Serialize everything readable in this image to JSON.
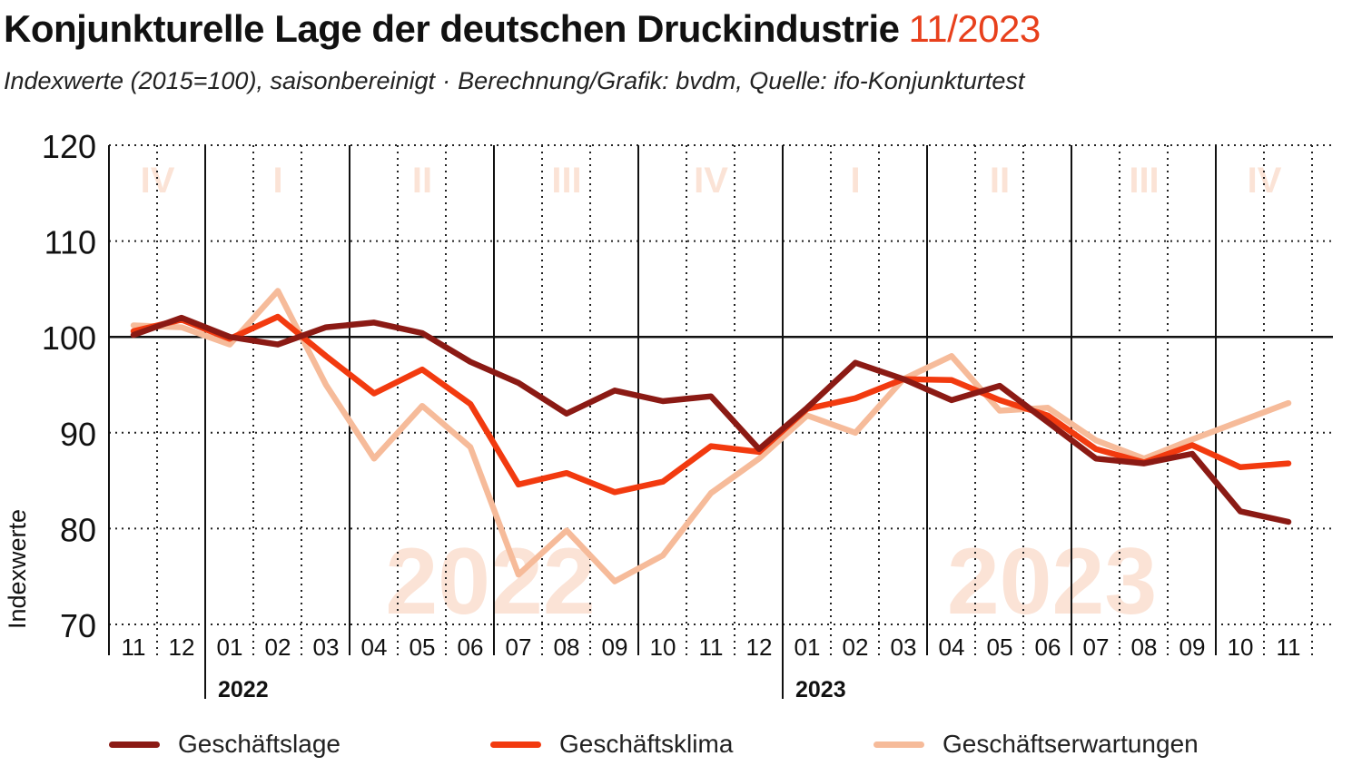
{
  "header": {
    "title": "Konjunkturelle Lage der deutschen Druckindustrie",
    "title_date": "11/2023",
    "subtitle_left": "Indexwerte (2015=100), saisonbereinigt",
    "subtitle_sep": "·",
    "subtitle_right": "Berechnung/Grafik: bvdm, Quelle: ifo-Konjunkturtest"
  },
  "colors": {
    "accent": "#e8401c",
    "geschaeftslage": "#8b1a14",
    "geschaeftsklima": "#f23a0f",
    "geschaeftserwartungen": "#f6bb9a",
    "watermark": "#fbe3d6",
    "grid": "#222222"
  },
  "chart_data": {
    "type": "line",
    "ylabel": "Indexwerte",
    "ylim": [
      70,
      120
    ],
    "yticks": [
      70,
      80,
      90,
      100,
      110,
      120
    ],
    "baseline": 100,
    "grid": "dotted",
    "legend_position": "bottom",
    "categories": [
      "11",
      "12",
      "01",
      "02",
      "03",
      "04",
      "05",
      "06",
      "07",
      "08",
      "09",
      "10",
      "11",
      "12",
      "01",
      "02",
      "03",
      "04",
      "05",
      "06",
      "07",
      "08",
      "09",
      "10",
      "11"
    ],
    "years": [
      {
        "label": "2022",
        "start_index": 2
      },
      {
        "label": "2023",
        "start_index": 14
      }
    ],
    "quarters": [
      {
        "label": "IV",
        "start_index": 0,
        "end_index": 1
      },
      {
        "label": "I",
        "start_index": 2,
        "end_index": 4
      },
      {
        "label": "II",
        "start_index": 5,
        "end_index": 7
      },
      {
        "label": "III",
        "start_index": 8,
        "end_index": 10
      },
      {
        "label": "IV",
        "start_index": 11,
        "end_index": 13
      },
      {
        "label": "I",
        "start_index": 14,
        "end_index": 16
      },
      {
        "label": "II",
        "start_index": 17,
        "end_index": 19
      },
      {
        "label": "III",
        "start_index": 20,
        "end_index": 22
      },
      {
        "label": "IV",
        "start_index": 23,
        "end_index": 24
      }
    ],
    "series": [
      {
        "name": "Geschäftserwartungen",
        "color": "#f6bb9a",
        "values": [
          101.2,
          101.0,
          99.2,
          104.8,
          95.0,
          87.3,
          92.8,
          88.5,
          75.2,
          79.8,
          74.5,
          77.2,
          83.7,
          87.3,
          91.8,
          90.0,
          95.6,
          98.0,
          92.3,
          92.6,
          89.2,
          87.3,
          89.3,
          91.2,
          93.1
        ]
      },
      {
        "name": "Geschäftsklima",
        "color": "#f23a0f",
        "values": [
          100.6,
          101.8,
          99.8,
          102.1,
          98.0,
          94.1,
          96.6,
          93.0,
          84.6,
          85.8,
          83.8,
          84.9,
          88.6,
          88.0,
          92.5,
          93.6,
          95.6,
          95.5,
          93.4,
          91.8,
          88.3,
          86.9,
          88.7,
          86.4,
          86.8
        ]
      },
      {
        "name": "Geschäftslage",
        "color": "#8b1a14",
        "values": [
          100.2,
          102.0,
          100.0,
          99.2,
          101.0,
          101.5,
          100.4,
          97.4,
          95.2,
          92.0,
          94.4,
          93.3,
          93.8,
          88.3,
          92.6,
          97.3,
          95.6,
          93.4,
          94.9,
          91.1,
          87.3,
          86.8,
          87.8,
          81.8,
          80.7
        ]
      }
    ]
  }
}
